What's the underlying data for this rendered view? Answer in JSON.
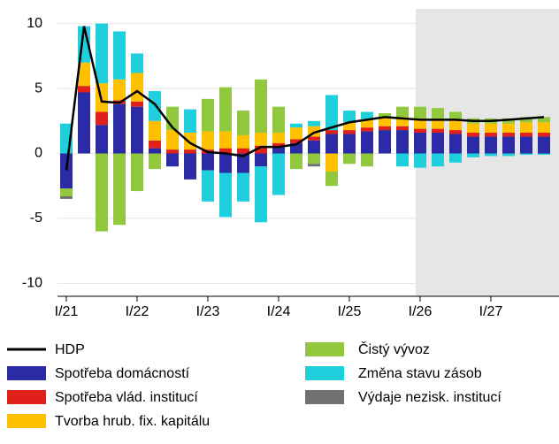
{
  "chart_data": {
    "type": "bar",
    "stacked": true,
    "categories": [
      "I/21",
      null,
      null,
      null,
      "I/22",
      null,
      null,
      null,
      "I/23",
      null,
      null,
      null,
      "I/24",
      null,
      null,
      null,
      "I/25",
      null,
      null,
      null,
      "I/26",
      null,
      null,
      null,
      "I/27",
      null,
      null,
      null
    ],
    "series": [
      {
        "name": "HDP",
        "type": "line",
        "color": "#000000",
        "values": [
          -1.3,
          9.8,
          4.0,
          3.9,
          4.8,
          3.8,
          2.0,
          0.8,
          0.1,
          0.0,
          -0.2,
          0.5,
          0.5,
          0.7,
          1.6,
          2.0,
          2.4,
          2.6,
          2.8,
          2.7,
          2.6,
          2.6,
          2.6,
          2.5,
          2.5,
          2.6,
          2.7,
          2.8
        ]
      },
      {
        "name": "Spotřeba domácností",
        "color": "#2b2ba6",
        "values": [
          -2.7,
          4.7,
          2.2,
          3.8,
          3.6,
          0.4,
          -1.0,
          -2.0,
          -1.3,
          -1.5,
          -1.5,
          -1.0,
          0.5,
          0.8,
          1.0,
          1.5,
          1.5,
          1.7,
          1.8,
          1.8,
          1.6,
          1.6,
          1.5,
          1.3,
          1.3,
          1.3,
          1.3,
          1.3
        ]
      },
      {
        "name": "Spotřeba vlád. institucí",
        "color": "#e0201b",
        "values": [
          0.0,
          0.5,
          1.0,
          0.3,
          0.4,
          0.6,
          0.3,
          0.3,
          0.3,
          0.4,
          0.4,
          0.6,
          0.3,
          0.3,
          0.3,
          0.3,
          0.3,
          0.3,
          0.3,
          0.3,
          0.3,
          0.3,
          0.3,
          0.3,
          0.3,
          0.3,
          0.3,
          0.3
        ]
      },
      {
        "name": "Tvorba hrub. fix. kapitálu",
        "color": "#ffc000",
        "values": [
          0.0,
          1.8,
          2.2,
          1.6,
          2.2,
          1.5,
          1.5,
          1.3,
          1.4,
          1.3,
          1.0,
          1.0,
          0.8,
          0.9,
          0.8,
          -1.4,
          0.6,
          0.6,
          0.6,
          0.7,
          0.8,
          0.8,
          0.8,
          0.7,
          0.7,
          0.7,
          0.8,
          0.8
        ]
      },
      {
        "name": "Čistý vývoz",
        "color": "#92c83e",
        "values": [
          -0.6,
          0.0,
          -6.0,
          -5.5,
          -2.9,
          -1.2,
          1.8,
          0.0,
          2.5,
          3.4,
          1.9,
          4.1,
          2.0,
          -1.2,
          -0.8,
          -1.1,
          -0.8,
          -1.0,
          0.4,
          0.8,
          0.9,
          0.8,
          0.6,
          0.4,
          0.4,
          0.4,
          0.4,
          0.4
        ]
      },
      {
        "name": "Změna stavu zásob",
        "color": "#1fcfdb",
        "values": [
          2.3,
          2.8,
          4.6,
          3.7,
          1.5,
          2.3,
          0.0,
          1.8,
          -2.4,
          -3.4,
          -2.2,
          -4.3,
          -3.2,
          0.3,
          0.4,
          2.7,
          0.9,
          0.6,
          0.0,
          -1.0,
          -1.1,
          -1.0,
          -0.7,
          -0.3,
          -0.2,
          -0.2,
          -0.1,
          -0.1
        ]
      },
      {
        "name": "Výdaje nezisk. institucí",
        "color": "#707070",
        "values": [
          -0.2,
          0.0,
          0.0,
          0.0,
          0.0,
          0.0,
          0.0,
          0.0,
          0.0,
          0.0,
          0.0,
          0.0,
          0.0,
          0.0,
          -0.2,
          0.0,
          0.0,
          0.0,
          0.0,
          0.0,
          0.0,
          0.0,
          0.0,
          0.0,
          0.0,
          0.0,
          0.0,
          0.0
        ]
      }
    ],
    "ylim": [
      -11,
      11
    ],
    "yticks": [
      -10,
      -5,
      0,
      5,
      10
    ],
    "grid": true
  }
}
